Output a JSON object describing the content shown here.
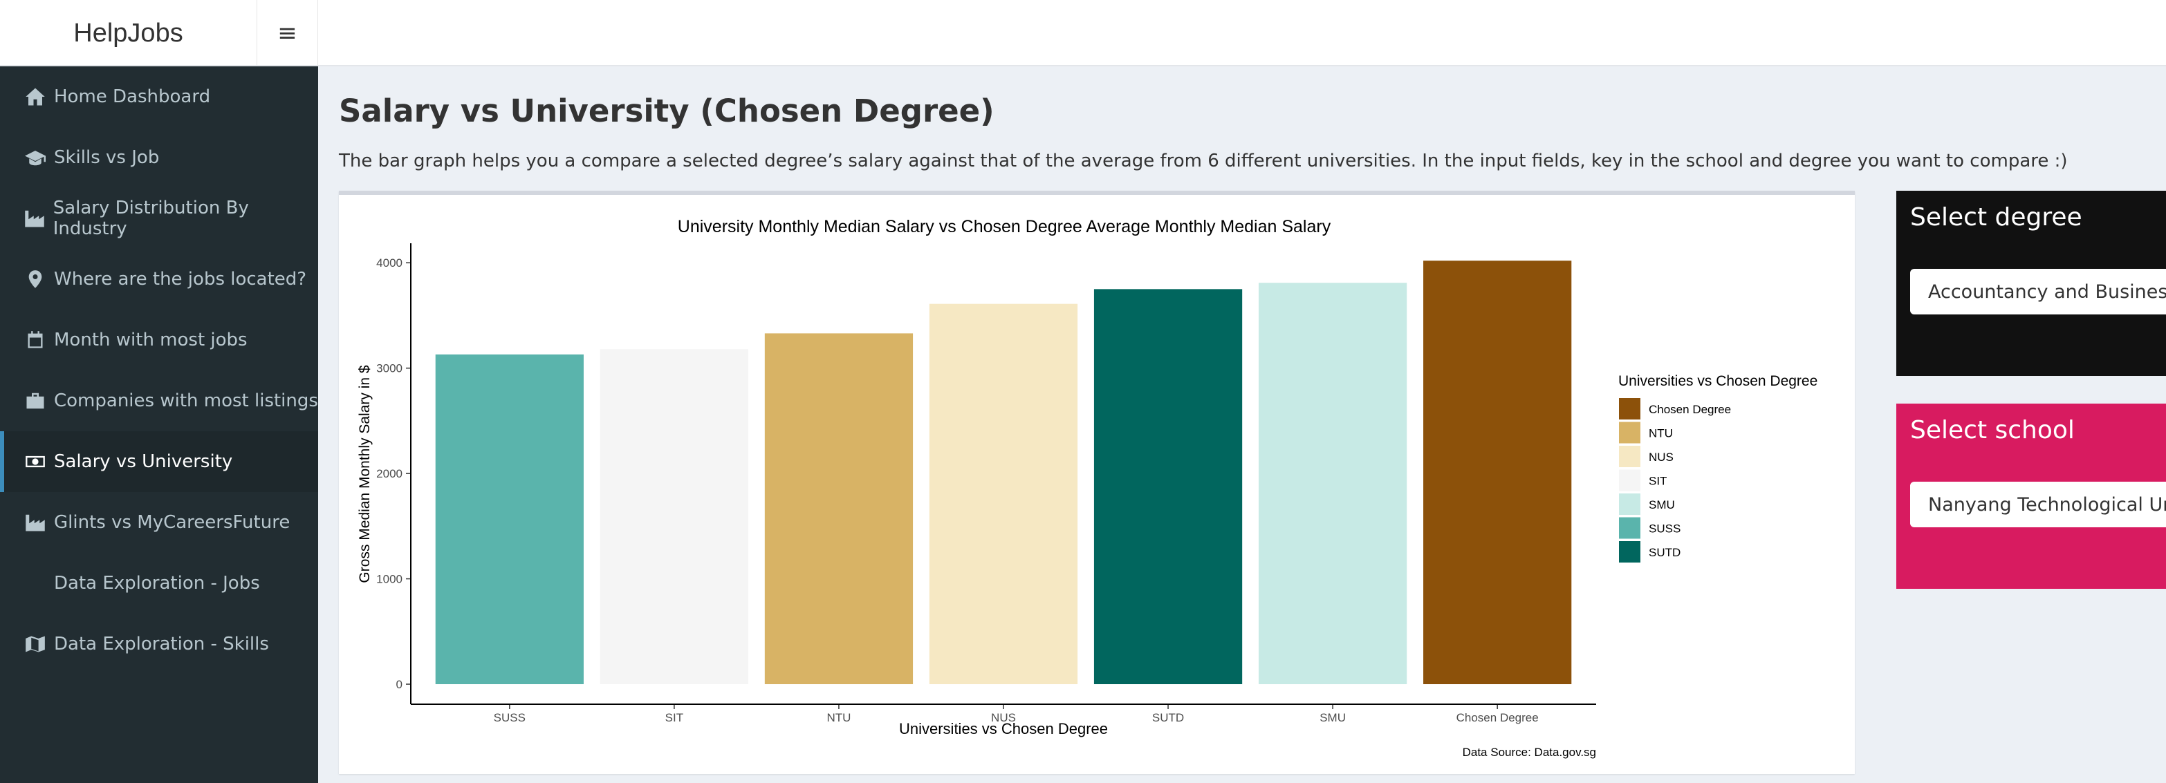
{
  "app": {
    "brand": "HelpJobs",
    "menu_toggle": "≡"
  },
  "sidebar": {
    "items": [
      {
        "label": "Home Dashboard",
        "icon": "home-icon"
      },
      {
        "label": "Skills vs Job",
        "icon": "graduation-cap-icon"
      },
      {
        "label": "Salary Distribution By Industry",
        "icon": "industry-icon"
      },
      {
        "label": "Where are the jobs located?",
        "icon": "map-marker-icon"
      },
      {
        "label": "Month with most jobs",
        "icon": "calendar-icon"
      },
      {
        "label": "Companies with most listings",
        "icon": "briefcase-icon"
      },
      {
        "label": "Salary vs University",
        "icon": "money-icon",
        "active": true
      },
      {
        "label": "Glints vs MyCareersFuture",
        "icon": "industry-icon"
      },
      {
        "label": "Data Exploration - Jobs",
        "icon": ""
      },
      {
        "label": "Data Exploration - Skills",
        "icon": "map-icon"
      }
    ]
  },
  "main": {
    "title": "Salary vs University (Chosen Degree)",
    "description": "The bar graph helps you a compare a selected degree’s salary against that of the average from 6 different universities. In the input fields, key in the school and degree you want to compare :)"
  },
  "controls": {
    "degree_title": "Select degree",
    "degree_value": "Accountancy and Business",
    "school_title": "Select school",
    "school_value": "Nanyang Technological University"
  },
  "chart_data": {
    "type": "bar",
    "title": "University Monthly Median Salary vs Chosen Degree Average Monthly Median Salary",
    "xlabel": "Universities vs Chosen Degree",
    "ylabel": "Gross Median Monthly Salary in $",
    "caption": "Data Source: Data.gov.sg",
    "categories": [
      "SUSS",
      "SIT",
      "NTU",
      "NUS",
      "SUTD",
      "SMU",
      "Chosen Degree"
    ],
    "values": [
      3130,
      3180,
      3330,
      3610,
      3750,
      3810,
      4020
    ],
    "colors": [
      "#5ab4ac",
      "#f5f5f5",
      "#d8b365",
      "#f6e8c3",
      "#01665e",
      "#c7eae5",
      "#8c510a"
    ],
    "ylim": [
      0,
      4100
    ],
    "yticks": [
      0,
      1000,
      2000,
      3000,
      4000
    ],
    "legend": {
      "title": "Universities vs Chosen Degree",
      "position": "right",
      "entries": [
        {
          "label": "Chosen Degree",
          "color": "#8c510a"
        },
        {
          "label": "NTU",
          "color": "#d8b365"
        },
        {
          "label": "NUS",
          "color": "#f6e8c3"
        },
        {
          "label": "SIT",
          "color": "#f5f5f5"
        },
        {
          "label": "SMU",
          "color": "#c7eae5"
        },
        {
          "label": "SUSS",
          "color": "#5ab4ac"
        },
        {
          "label": "SUTD",
          "color": "#01665e"
        }
      ]
    },
    "grid": false
  }
}
